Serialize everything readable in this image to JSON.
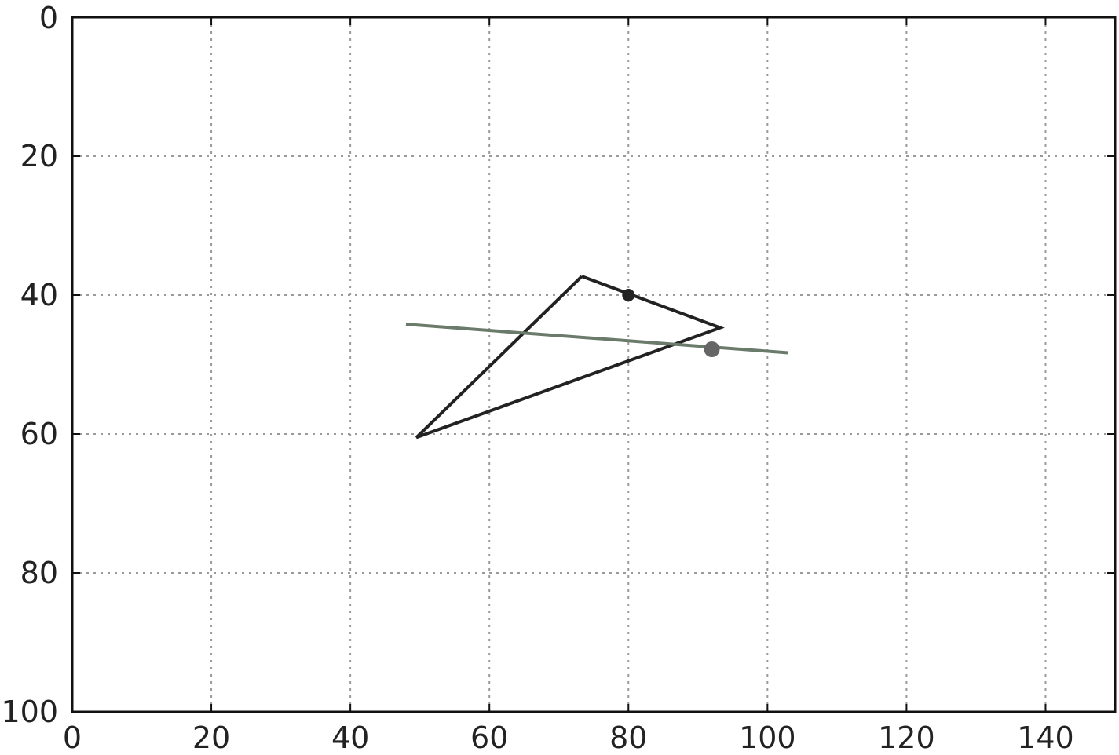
{
  "chart_data": {
    "type": "line",
    "title": "",
    "xlabel": "",
    "ylabel": "",
    "xlim": [
      0,
      150
    ],
    "ylim": [
      100,
      0
    ],
    "y_axis_inverted": true,
    "grid": true,
    "grid_style": "dotted",
    "x_ticks": [
      "0",
      "20",
      "40",
      "60",
      "80",
      "100",
      "120",
      "140"
    ],
    "y_ticks": [
      "0",
      "20",
      "40",
      "60",
      "80",
      "100"
    ],
    "series": [
      {
        "kind": "polygon",
        "color": "#222222",
        "points": [
          [
            73.3,
            37.3
          ],
          [
            93.2,
            44.7
          ],
          [
            49.5,
            60.5
          ],
          [
            73.3,
            37.3
          ]
        ]
      },
      {
        "kind": "line",
        "color": "#6b7b6b",
        "points": [
          [
            48.0,
            44.2
          ],
          [
            103.0,
            48.3
          ]
        ]
      },
      {
        "kind": "point",
        "color": "#222222",
        "size": "small",
        "points": [
          [
            80.0,
            40.0
          ]
        ]
      },
      {
        "kind": "point",
        "color": "#666666",
        "size": "large",
        "points": [
          [
            92.0,
            47.8
          ]
        ]
      }
    ]
  }
}
